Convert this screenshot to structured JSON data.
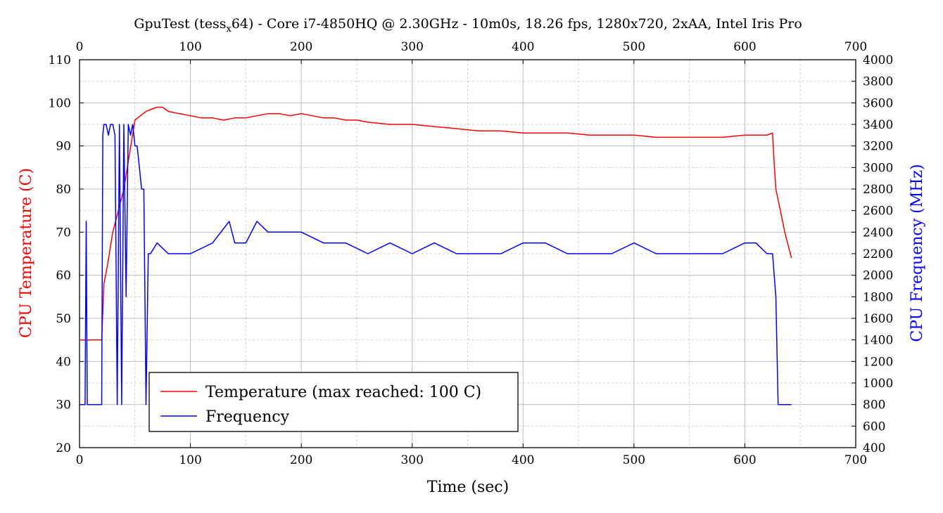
{
  "chart_data": {
    "type": "line",
    "title_main": "GpuTest (tess",
    "title_sub": "x",
    "title_rest": "64) - Core i7-4850HQ @ 2.30GHz - 10m0s, 18.26 fps, 1280x720, 2xAA, Intel Iris Pro",
    "xlabel": "Time (sec)",
    "ylabel_left": "CPU Temperature (C)",
    "ylabel_right": "CPU Frequency (MHz)",
    "xlim": [
      0,
      700
    ],
    "ylim_left": [
      20,
      110
    ],
    "ylim_right": [
      400,
      4000
    ],
    "x_ticks": [
      0,
      100,
      200,
      300,
      400,
      500,
      600,
      700
    ],
    "y_left_ticks": [
      20,
      30,
      40,
      50,
      60,
      70,
      80,
      90,
      100,
      110
    ],
    "y_right_ticks": [
      400,
      600,
      800,
      1000,
      1200,
      1400,
      1600,
      1800,
      2000,
      2200,
      2400,
      2600,
      2800,
      3000,
      3200,
      3400,
      3600,
      3800,
      4000
    ],
    "grid": true,
    "legend_position": "bottom-left",
    "colors": {
      "temperature": "#ff0000",
      "frequency": "#0000ff"
    },
    "series": [
      {
        "name": "Temperature (max reached: 100 C)",
        "axis": "left",
        "x": [
          0,
          10,
          20,
          22,
          25,
          30,
          35,
          40,
          45,
          50,
          55,
          60,
          65,
          70,
          75,
          80,
          90,
          100,
          110,
          120,
          130,
          140,
          150,
          160,
          170,
          180,
          190,
          200,
          210,
          220,
          230,
          240,
          250,
          260,
          280,
          300,
          320,
          340,
          360,
          380,
          400,
          420,
          440,
          460,
          480,
          500,
          520,
          540,
          560,
          580,
          600,
          610,
          620,
          625,
          626,
          628,
          632,
          636,
          640,
          642
        ],
        "y": [
          45,
          45,
          45,
          58,
          62,
          70,
          75,
          80,
          88,
          96,
          97,
          98,
          98.5,
          99,
          99,
          98,
          97.5,
          97,
          96.5,
          96.5,
          96,
          96.5,
          96.5,
          97,
          97.5,
          97.5,
          97,
          97.5,
          97,
          96.5,
          96.5,
          96,
          96,
          95.5,
          95,
          95,
          94.5,
          94,
          93.5,
          93.5,
          93,
          93,
          93,
          92.5,
          92.5,
          92.5,
          92,
          92,
          92,
          92,
          92.5,
          92.5,
          92.5,
          93,
          88,
          80,
          75,
          70,
          66,
          64
        ]
      },
      {
        "name": "Frequency",
        "axis": "right",
        "x": [
          0,
          5,
          6,
          7,
          8,
          20,
          21,
          22,
          24,
          26,
          28,
          30,
          32,
          34,
          36,
          38,
          40,
          42,
          44,
          46,
          48,
          50,
          52,
          54,
          56,
          58,
          60,
          62,
          64,
          70,
          80,
          100,
          120,
          135,
          140,
          150,
          160,
          170,
          180,
          190,
          200,
          220,
          240,
          260,
          280,
          300,
          320,
          340,
          360,
          380,
          400,
          420,
          440,
          460,
          480,
          500,
          520,
          540,
          560,
          580,
          600,
          610,
          620,
          625,
          628,
          630,
          632,
          642
        ],
        "y": [
          800,
          800,
          2500,
          800,
          800,
          800,
          3300,
          3400,
          3400,
          3300,
          3400,
          3400,
          3300,
          800,
          3400,
          800,
          3400,
          1800,
          3400,
          3300,
          3400,
          3200,
          3200,
          3000,
          2800,
          2800,
          800,
          2200,
          2200,
          2300,
          2200,
          2200,
          2300,
          2500,
          2300,
          2300,
          2500,
          2400,
          2400,
          2400,
          2400,
          2300,
          2300,
          2200,
          2300,
          2200,
          2300,
          2200,
          2200,
          2200,
          2300,
          2300,
          2200,
          2200,
          2200,
          2300,
          2200,
          2200,
          2200,
          2200,
          2300,
          2300,
          2200,
          2200,
          1800,
          800,
          800,
          800
        ]
      }
    ]
  }
}
